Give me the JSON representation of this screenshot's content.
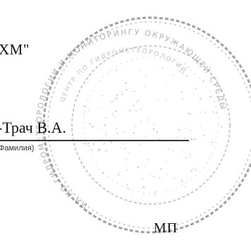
{
  "document": {
    "org_fragment": "ХМ\"",
    "signer_name": "-Трач В.А.",
    "name_caption": "Фамилия)",
    "stamp_place_label": "МП"
  },
  "seal": {
    "outer_text": "ИЯ ПО ГИДРОМЕТЕОРОЛОГИИ И МОНИТОРИНГУ ОКРУЖАЮЩЕЙ СРЕДЫ",
    "inner_text": "ЦЕНТР ПО ГИДРОМЕТЕОРОЛОГИИ",
    "ink_color": "#8a8a8a"
  }
}
